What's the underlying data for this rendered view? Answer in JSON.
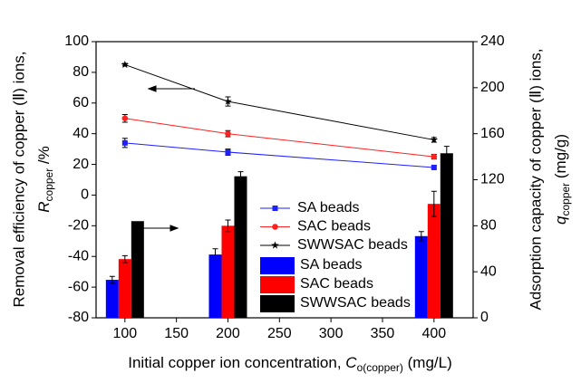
{
  "chart_data": {
    "type": "combo",
    "x_label": {
      "text": "Initial copper ion concentration, ",
      "symbol": "C",
      "subscript": "o(copper)",
      "unit": " (mg/L)"
    },
    "y_label": {
      "text": "Removal efficiency of copper (Ⅱ) ions,",
      "symbol": "R",
      "subscript": "copper",
      "unit": " /%"
    },
    "y2_label": {
      "text": "Adsorption capacity of copper (Ⅱ) ions,",
      "symbol": "q",
      "subscript": "copper",
      "unit": " (mg/g)"
    },
    "x": [
      100,
      200,
      400
    ],
    "xlim": [
      72,
      438
    ],
    "xticks": [
      100,
      150,
      200,
      250,
      300,
      350,
      400
    ],
    "ylim": [
      -80,
      100
    ],
    "yticks": [
      -80,
      -60,
      -40,
      -20,
      0,
      20,
      40,
      60,
      80,
      100
    ],
    "y2lim": [
      0,
      240
    ],
    "y2ticks": [
      0,
      40,
      80,
      120,
      160,
      200,
      240
    ],
    "series": [
      {
        "name": "SA beads",
        "type": "line",
        "marker": "square",
        "color": "#1f1fff",
        "values": [
          34,
          28,
          18
        ],
        "errors": [
          3,
          2,
          1
        ]
      },
      {
        "name": "SAC beads",
        "type": "line",
        "marker": "circle",
        "color": "#ff2020",
        "values": [
          50,
          40,
          25
        ],
        "errors": [
          2.5,
          2,
          1.5
        ]
      },
      {
        "name": "SWWSAC beads",
        "type": "line",
        "marker": "star",
        "color": "#000000",
        "values": [
          85,
          61,
          36
        ],
        "errors": [
          0.8,
          3,
          1.5
        ]
      },
      {
        "name": "SA beads",
        "type": "bar",
        "axis": "y2",
        "color": "#0000ff",
        "values": [
          33,
          55,
          71
        ],
        "errors": [
          3,
          5,
          4
        ]
      },
      {
        "name": "SAC beads",
        "type": "bar",
        "axis": "y2",
        "color": "#ff0000",
        "values": [
          51,
          80,
          99
        ],
        "errors": [
          3,
          5,
          11
        ]
      },
      {
        "name": "SWWSAC beads",
        "type": "bar",
        "axis": "y2",
        "color": "#000000",
        "values": [
          84,
          123,
          143
        ],
        "errors": [
          0,
          4,
          6
        ]
      }
    ]
  }
}
